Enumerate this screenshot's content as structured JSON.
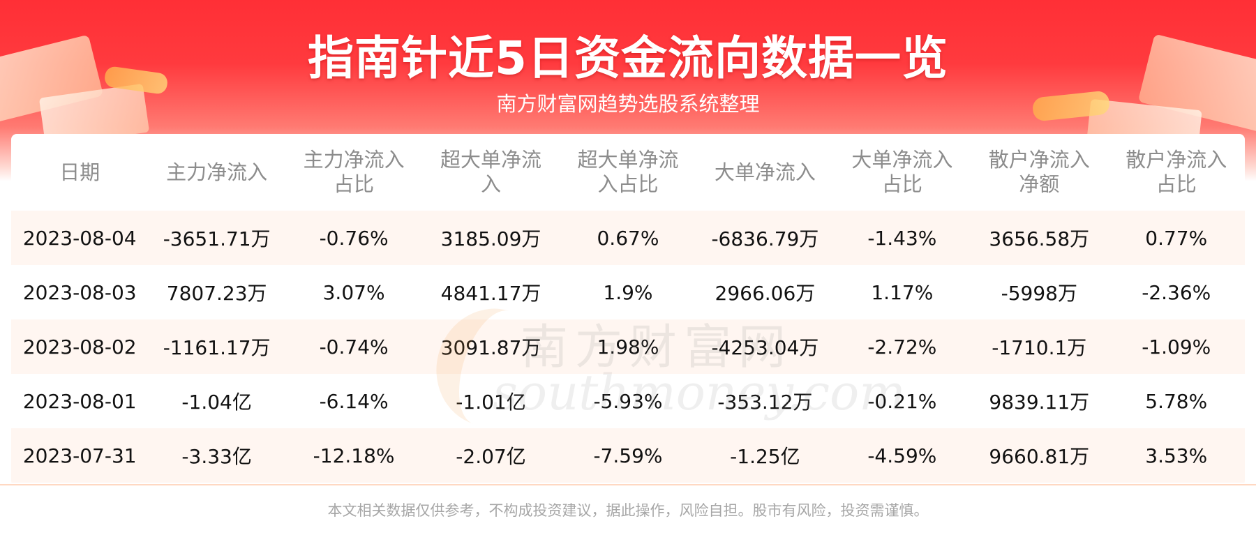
{
  "header": {
    "title": "指南针近5日资金流向数据一览",
    "subtitle": "南方财富网趋势选股系统整理"
  },
  "watermark": {
    "cn": "南方财富网",
    "en": "southmoney.com"
  },
  "table": {
    "headers": [
      [
        "日期"
      ],
      [
        "主力净流入"
      ],
      [
        "主力净流入",
        "占比"
      ],
      [
        "超大单净流",
        "入"
      ],
      [
        "超大单净流",
        "入占比"
      ],
      [
        "大单净流入"
      ],
      [
        "大单净流入",
        "占比"
      ],
      [
        "散户净流入",
        "净额"
      ],
      [
        "散户净流入",
        "占比"
      ]
    ],
    "rows": [
      [
        "2023-08-04",
        "-3651.71万",
        "-0.76%",
        "3185.09万",
        "0.67%",
        "-6836.79万",
        "-1.43%",
        "3656.58万",
        "0.77%"
      ],
      [
        "2023-08-03",
        "7807.23万",
        "3.07%",
        "4841.17万",
        "1.9%",
        "2966.06万",
        "1.17%",
        "-5998万",
        "-2.36%"
      ],
      [
        "2023-08-02",
        "-1161.17万",
        "-0.74%",
        "3091.87万",
        "1.98%",
        "-4253.04万",
        "-2.72%",
        "-1710.1万",
        "-1.09%"
      ],
      [
        "2023-08-01",
        "-1.04亿",
        "-6.14%",
        "-1.01亿",
        "-5.93%",
        "-353.12万",
        "-0.21%",
        "9839.11万",
        "5.78%"
      ],
      [
        "2023-07-31",
        "-3.33亿",
        "-12.18%",
        "-2.07亿",
        "-7.59%",
        "-1.25亿",
        "-4.59%",
        "9660.81万",
        "3.53%"
      ]
    ]
  },
  "footer": {
    "disclaimer": "本文相关数据仅供参考，不构成投资建议，据此操作，风险自担。股市有风险，投资需谨慎。"
  },
  "colors": {
    "header_red": "#ff2f36",
    "row_tint": "#fff5ee",
    "header_text_gray": "#8c8c8c"
  }
}
